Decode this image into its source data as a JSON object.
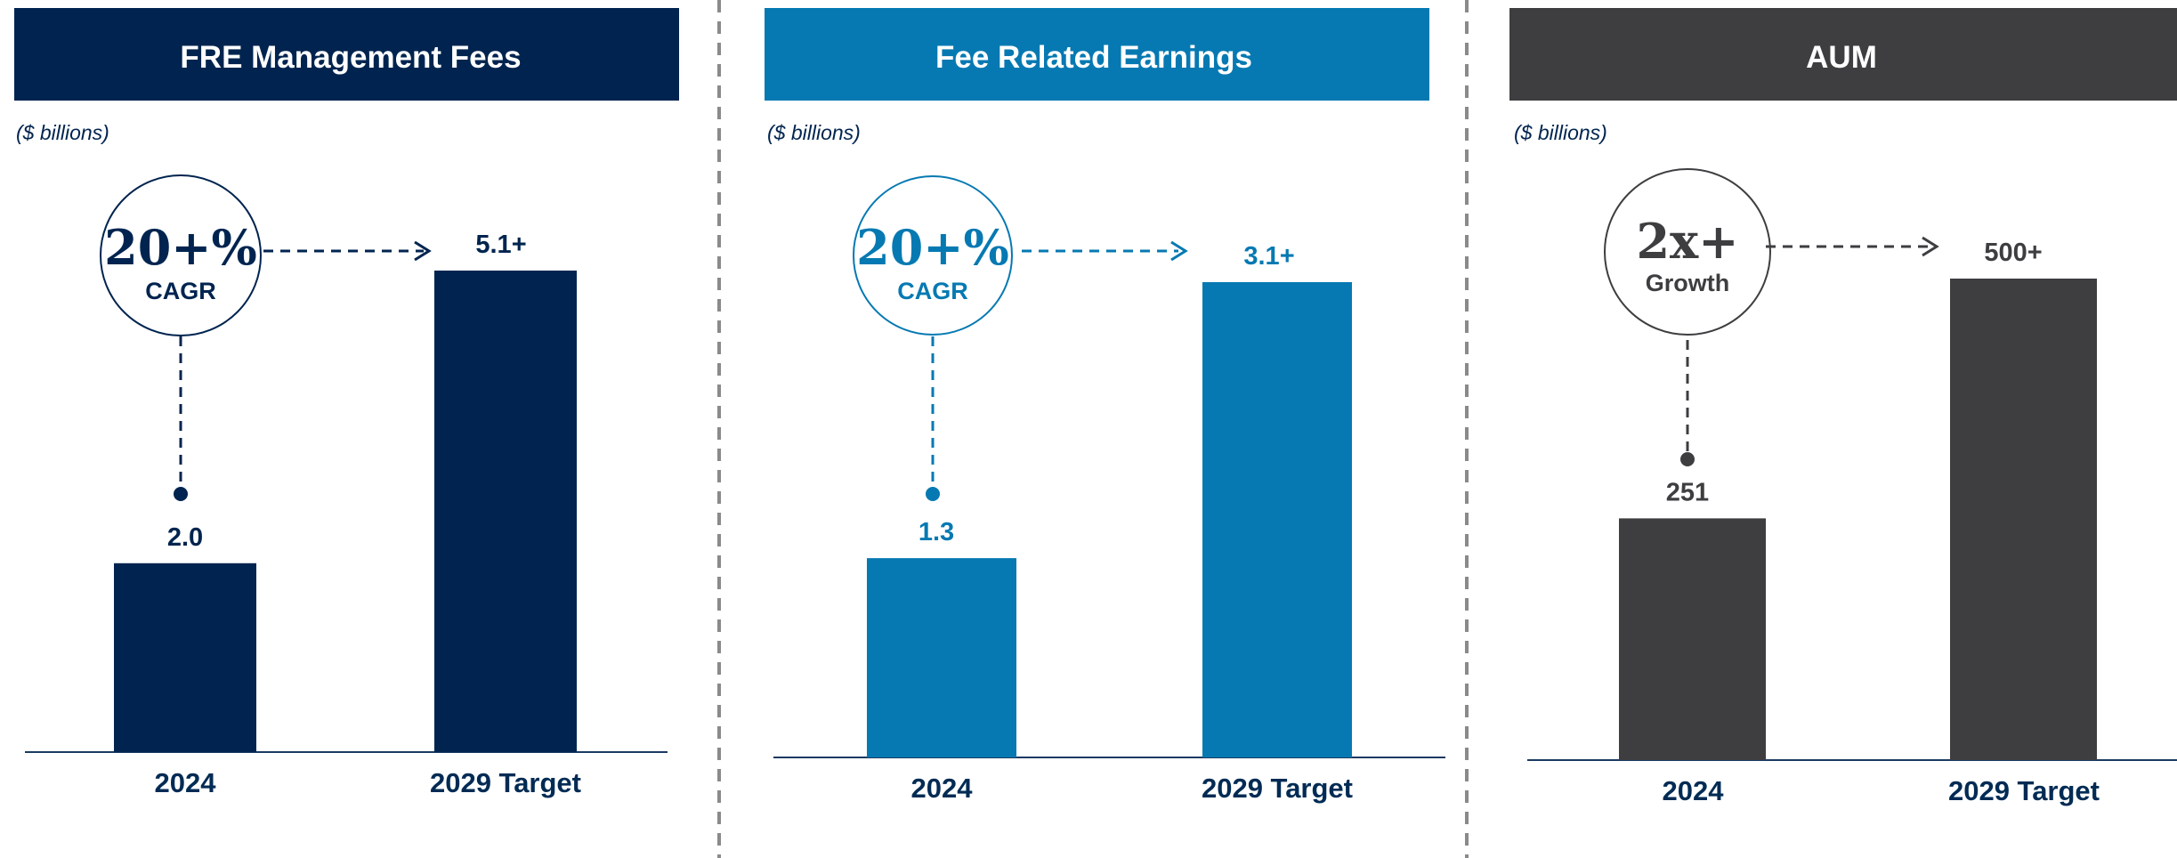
{
  "colors": {
    "navy": "#00244f",
    "blue": "#0679b2",
    "gray": "#3e3d40",
    "axis": "#1b3a63",
    "divider": "#8a8a8a"
  },
  "chart_data": [
    {
      "type": "bar",
      "title": "FRE Management Fees",
      "units": "($ billions)",
      "categories": [
        "2024",
        "2029 Target"
      ],
      "values": [
        2.0,
        5.1
      ],
      "value_labels": [
        "2.0",
        "5.1+"
      ],
      "badge": {
        "value": "20+%",
        "label": "CAGR"
      },
      "color": "#00244f",
      "ylim": [
        0,
        5.1
      ],
      "legend": "none",
      "grid": false
    },
    {
      "type": "bar",
      "title": "Fee Related Earnings",
      "units": "($ billions)",
      "categories": [
        "2024",
        "2029 Target"
      ],
      "values": [
        1.3,
        3.1
      ],
      "value_labels": [
        "1.3",
        "3.1+"
      ],
      "badge": {
        "value": "20+%",
        "label": "CAGR"
      },
      "color": "#0679b2",
      "ylim": [
        0,
        3.1
      ],
      "legend": "none",
      "grid": false
    },
    {
      "type": "bar",
      "title": "AUM",
      "units": "($ billions)",
      "categories": [
        "2024",
        "2029 Target"
      ],
      "values": [
        251,
        500
      ],
      "value_labels": [
        "251",
        "500+"
      ],
      "badge": {
        "value": "2x+",
        "label": "Growth"
      },
      "color": "#3e3d40",
      "ylim": [
        0,
        500
      ],
      "legend": "none",
      "grid": false
    }
  ]
}
